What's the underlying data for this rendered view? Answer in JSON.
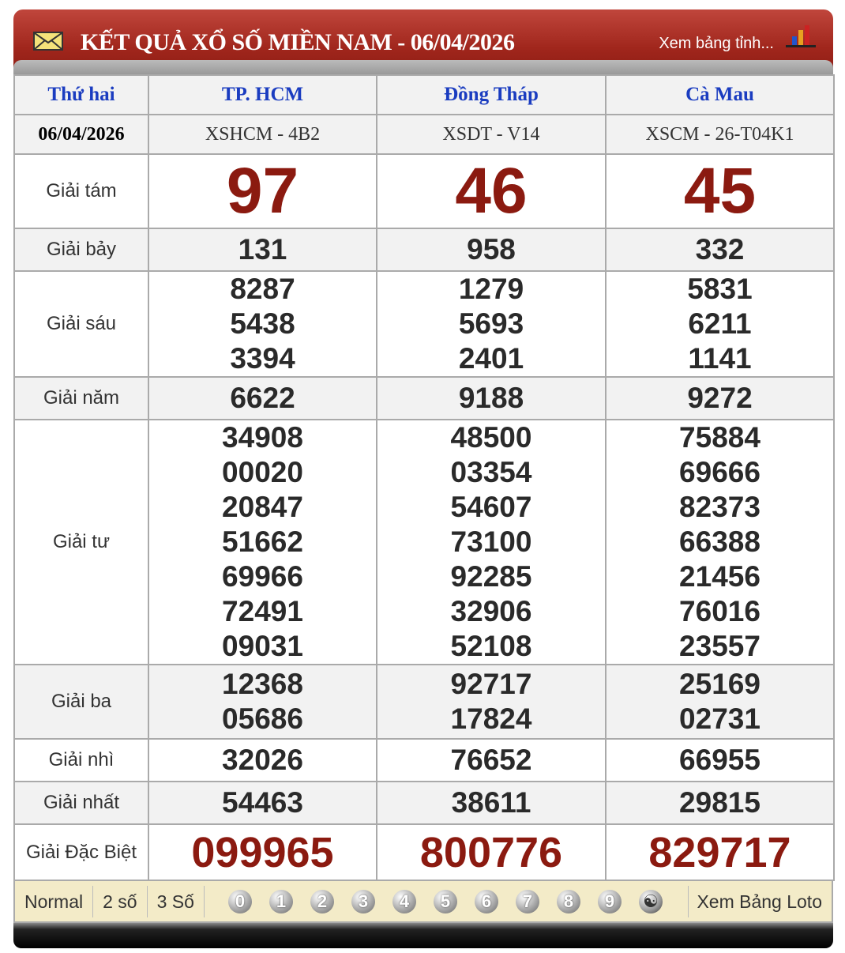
{
  "header": {
    "title": "KẾT QUẢ XỔ SỐ MIỀN NAM - 06/04/2026",
    "view_link": "Xem bảng tỉnh...",
    "icons": [
      "envelope-icon",
      "bar-chart-icon"
    ]
  },
  "columns": {
    "day": "Thứ hai",
    "provinces": [
      "TP. HCM",
      "Đồng Tháp",
      "Cà Mau"
    ],
    "date": "06/04/2026",
    "codes": [
      "XSHCM - 4B2",
      "XSDT - V14",
      "XSCM - 26-T04K1"
    ]
  },
  "prizes": [
    {
      "label": "Giải tám",
      "values": [
        [
          "97"
        ],
        [
          "46"
        ],
        [
          "45"
        ]
      ]
    },
    {
      "label": "Giải bảy",
      "values": [
        [
          "131"
        ],
        [
          "958"
        ],
        [
          "332"
        ]
      ]
    },
    {
      "label": "Giải sáu",
      "values": [
        [
          "8287",
          "5438",
          "3394"
        ],
        [
          "1279",
          "5693",
          "2401"
        ],
        [
          "5831",
          "6211",
          "1141"
        ]
      ]
    },
    {
      "label": "Giải năm",
      "values": [
        [
          "6622"
        ],
        [
          "9188"
        ],
        [
          "9272"
        ]
      ]
    },
    {
      "label": "Giải tư",
      "values": [
        [
          "34908",
          "00020",
          "20847",
          "51662",
          "69966",
          "72491",
          "09031"
        ],
        [
          "48500",
          "03354",
          "54607",
          "73100",
          "92285",
          "32906",
          "52108"
        ],
        [
          "75884",
          "69666",
          "82373",
          "66388",
          "21456",
          "76016",
          "23557"
        ]
      ]
    },
    {
      "label": "Giải ba",
      "values": [
        [
          "12368",
          "05686"
        ],
        [
          "92717",
          "17824"
        ],
        [
          "25169",
          "02731"
        ]
      ]
    },
    {
      "label": "Giải nhì",
      "values": [
        [
          "32026"
        ],
        [
          "76652"
        ],
        [
          "66955"
        ]
      ]
    },
    {
      "label": "Giải nhất",
      "values": [
        [
          "54463"
        ],
        [
          "38611"
        ],
        [
          "29815"
        ]
      ]
    },
    {
      "label": "Giải Đặc Biệt",
      "values": [
        [
          "099965"
        ],
        [
          "800776"
        ],
        [
          "829717"
        ]
      ]
    }
  ],
  "footer": {
    "options": [
      "Normal",
      "2 số",
      "3 Số"
    ],
    "digits": [
      "0",
      "1",
      "2",
      "3",
      "4",
      "5",
      "6",
      "7",
      "8",
      "9"
    ],
    "extra_icon": "yin-yang-icon",
    "loto_link": "Xem Bảng Loto"
  },
  "colors": {
    "header_red": "#a0261c",
    "prize_red": "#8b1a10",
    "province_blue": "#1a3cc0",
    "footer_bg": "#f3ebc8"
  }
}
